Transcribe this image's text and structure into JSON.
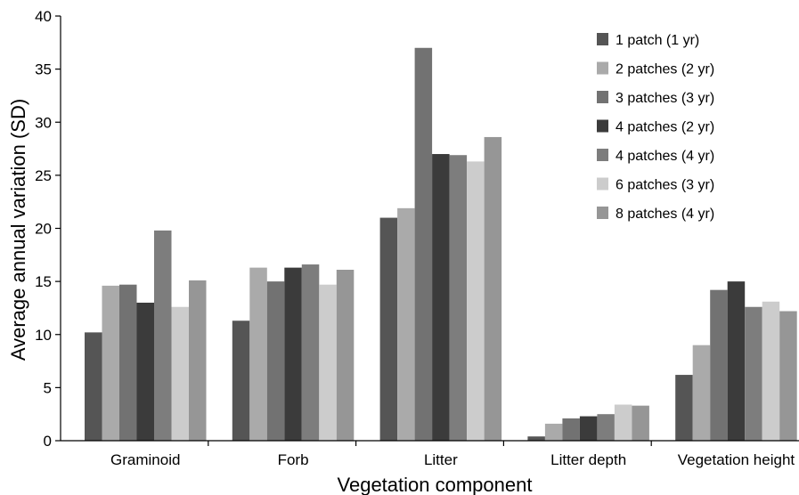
{
  "chart_data": {
    "type": "bar",
    "title": "",
    "xlabel": "Vegetation component",
    "ylabel": "Average annual variation (SD)",
    "ylim": [
      0,
      40
    ],
    "yticks": [
      "0",
      "5",
      "10",
      "15",
      "20",
      "25",
      "30",
      "35",
      "40"
    ],
    "categories": [
      "Graminoid",
      "Forb",
      "Litter",
      "Litter depth",
      "Vegetation height"
    ],
    "grid": false,
    "legend_position": "top-right",
    "series": [
      {
        "name": "1 patch (1 yr)",
        "color": "#555555",
        "values": [
          10.2,
          11.3,
          21.0,
          0.4,
          6.2
        ]
      },
      {
        "name": "2 patches (2 yr)",
        "color": "#aaaaaa",
        "values": [
          14.6,
          16.3,
          21.9,
          1.6,
          9.0
        ]
      },
      {
        "name": "3 patches (3 yr)",
        "color": "#727272",
        "values": [
          14.7,
          15.0,
          37.0,
          2.1,
          14.2
        ]
      },
      {
        "name": "4 patches (2 yr)",
        "color": "#3b3b3b",
        "values": [
          13.0,
          16.3,
          27.0,
          2.3,
          15.0
        ]
      },
      {
        "name": "4 patches (4 yr)",
        "color": "#7d7d7d",
        "values": [
          19.8,
          16.6,
          26.9,
          2.5,
          12.6
        ]
      },
      {
        "name": "6 patches (3 yr)",
        "color": "#cccccc",
        "values": [
          12.6,
          14.7,
          26.3,
          3.4,
          13.1
        ]
      },
      {
        "name": "8 patches (4 yr)",
        "color": "#969696",
        "values": [
          15.1,
          16.1,
          28.6,
          3.3,
          12.2
        ]
      }
    ]
  }
}
